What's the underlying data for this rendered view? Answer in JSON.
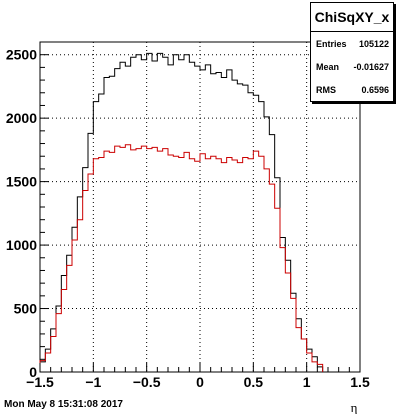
{
  "chart_data": {
    "type": "histogram",
    "x_bin_edges_start": -1.5,
    "x_bin_width": 0.05,
    "xlim": [
      -1.5,
      1.5
    ],
    "ylim": [
      0,
      2600
    ],
    "xlabel": "η",
    "x_ticks": [
      "−1.5",
      "−1",
      "−0.5",
      "0",
      "0.5",
      "1",
      "1.5"
    ],
    "x_tick_values": [
      -1.5,
      -1,
      -0.5,
      0,
      0.5,
      1,
      1.5
    ],
    "y_ticks": [
      "0",
      "500",
      "1000",
      "1500",
      "2000",
      "2500"
    ],
    "y_tick_values": [
      0,
      500,
      1000,
      1500,
      2000,
      2500
    ],
    "grid": true,
    "series": [
      {
        "color": "#000000",
        "values": [
          80,
          180,
          340,
          520,
          760,
          920,
          1140,
          1380,
          1610,
          1880,
          2130,
          2190,
          2320,
          2330,
          2390,
          2440,
          2410,
          2480,
          2500,
          2460,
          2510,
          2450,
          2510,
          2480,
          2420,
          2500,
          2460,
          2500,
          2440,
          2410,
          2380,
          2420,
          2350,
          2360,
          2320,
          2380,
          2300,
          2270,
          2260,
          2200,
          2180,
          2130,
          2010,
          1870,
          1530,
          1060,
          880,
          620,
          420,
          260,
          180,
          120,
          40
        ]
      },
      {
        "color": "#cc0000",
        "values": [
          90,
          150,
          280,
          460,
          650,
          840,
          1040,
          1200,
          1430,
          1560,
          1680,
          1690,
          1740,
          1730,
          1780,
          1770,
          1790,
          1750,
          1760,
          1780,
          1760,
          1770,
          1740,
          1760,
          1710,
          1700,
          1690,
          1730,
          1680,
          1660,
          1720,
          1680,
          1700,
          1680,
          1650,
          1690,
          1670,
          1650,
          1690,
          1680,
          1740,
          1700,
          1600,
          1480,
          1290,
          980,
          780,
          580,
          350,
          260,
          150,
          80,
          60
        ]
      }
    ]
  },
  "stats_box": {
    "title": "ChiSqXY_x",
    "entries_label": "Entries",
    "entries_value": "105122",
    "mean_label": "Mean",
    "mean_value": "-0.01627",
    "rms_label": "RMS",
    "rms_value": "0.6596"
  },
  "datestamp": "Mon May  8 15:31:08 2017"
}
